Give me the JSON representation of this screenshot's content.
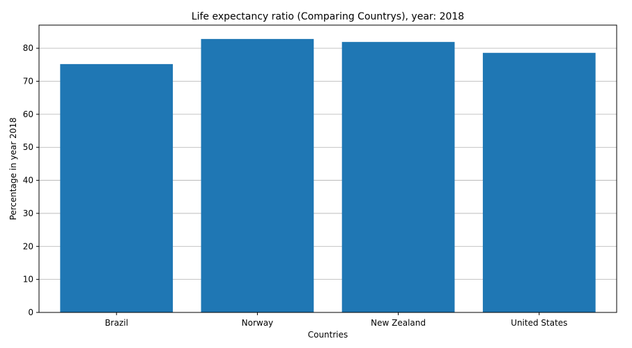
{
  "chart_data": {
    "type": "bar",
    "title": "Life expectancy ratio (Comparing Countrys), year: 2018",
    "xlabel": "Countries",
    "ylabel": "Percentage in year 2018",
    "categories": [
      "Brazil",
      "Norway",
      "New Zealand",
      "United States"
    ],
    "values": [
      75.2,
      82.8,
      81.9,
      78.6
    ],
    "ylim": [
      0,
      87
    ],
    "yticks": [
      0,
      10,
      20,
      30,
      40,
      50,
      60,
      70,
      80
    ],
    "grid": "y-only",
    "legend": "none",
    "bar_color": "#1f77b4",
    "grid_color": "#b0b0b0"
  }
}
